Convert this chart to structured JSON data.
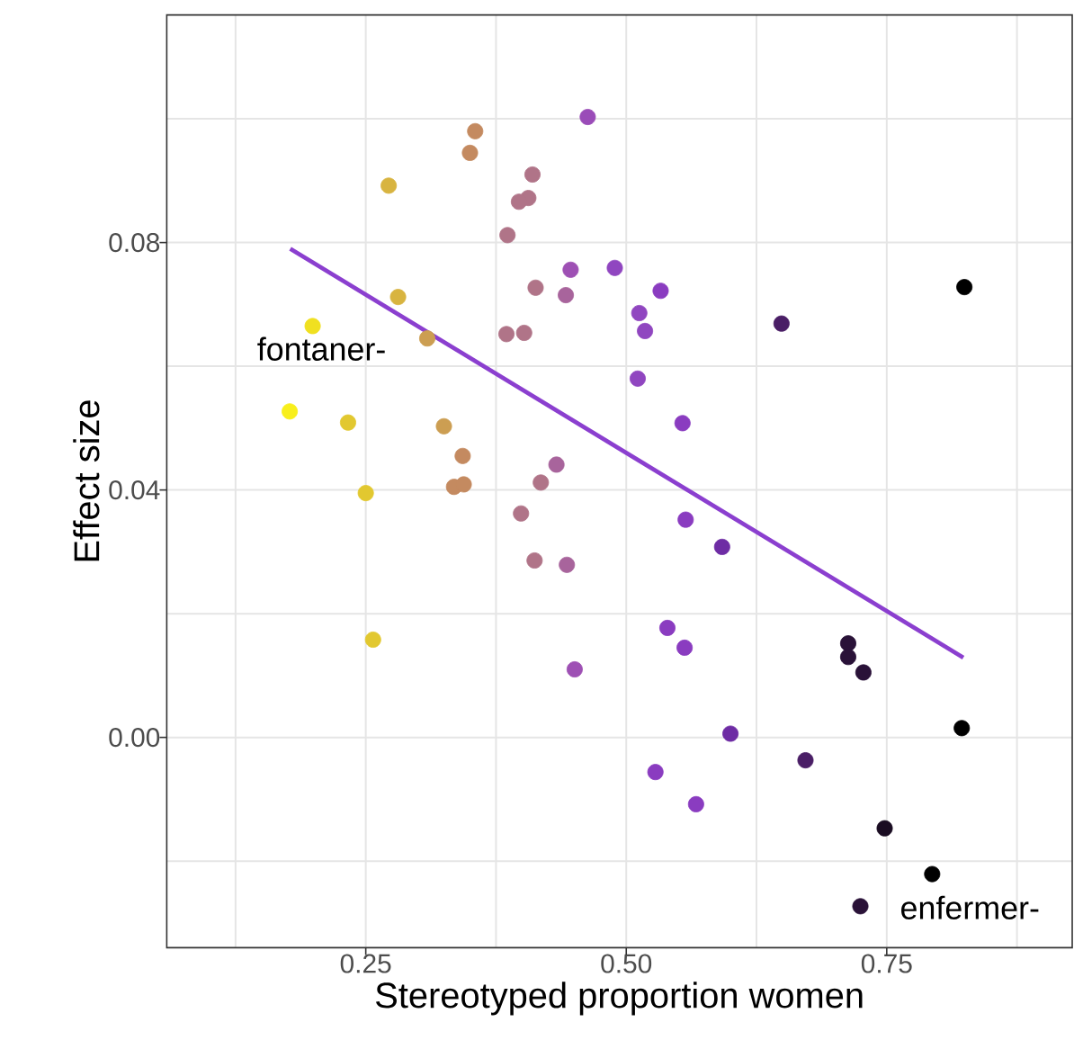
{
  "chart_data": {
    "type": "scatter",
    "xlabel": "Stereotyped proportion women",
    "ylabel": "Effect size",
    "xlim": [
      0.059,
      0.928
    ],
    "ylim": [
      -0.034,
      0.1168
    ],
    "xticks": [
      {
        "value": 0.125,
        "label": null
      },
      0.25,
      {
        "value": 0.375,
        "label": null
      },
      {
        "value": 0.5,
        "label": "0.50"
      },
      {
        "value": 0.625,
        "label": null
      },
      0.75,
      {
        "value": 0.875,
        "label": null
      }
    ],
    "yticks": [
      {
        "value": -0.02,
        "label": null
      },
      {
        "value": 0,
        "label": "0.00"
      },
      {
        "value": 0.02,
        "label": null
      },
      0.04,
      {
        "value": 0.06,
        "label": null
      },
      0.08,
      {
        "value": 0.1,
        "label": null
      }
    ],
    "grid": true,
    "series": [
      {
        "marker": "circle",
        "x": [
          0.463,
          0.355,
          0.35,
          0.41,
          0.406,
          0.397,
          0.272,
          0.386,
          0.4466,
          0.489,
          0.413,
          0.442,
          0.281,
          0.199,
          0.385,
          0.402,
          0.309,
          0.177,
          0.233,
          0.325,
          0.343,
          0.433,
          0.418,
          0.533,
          0.5125,
          0.518,
          0.649,
          0.8245,
          0.511,
          0.554,
          0.25,
          0.3347,
          0.344,
          0.399,
          0.412,
          0.443,
          0.257,
          0.4505,
          0.557,
          0.592,
          0.5395,
          0.556,
          0.713,
          0.713,
          0.7276,
          0.822,
          0.6,
          0.672,
          0.528,
          0.567,
          0.748,
          0.7936,
          0.7247
        ],
        "values": [
          0.1003,
          0.098,
          0.0945,
          0.091,
          0.0872,
          0.0866,
          0.0892,
          0.0812,
          0.0756,
          0.0759,
          0.0727,
          0.0715,
          0.0712,
          0.0665,
          0.0652,
          0.0654,
          0.0645,
          0.0527,
          0.0509,
          0.0503,
          0.0455,
          0.0441,
          0.0412,
          0.0722,
          0.0686,
          0.0657,
          0.0669,
          0.0728,
          0.058,
          0.0508,
          0.0395,
          0.0405,
          0.0409,
          0.0362,
          0.0286,
          0.0279,
          0.0158,
          0.011,
          0.0352,
          0.0308,
          0.0177,
          0.0145,
          0.0152,
          0.013,
          0.0105,
          0.0015,
          0.0006,
          -0.0037,
          -0.0056,
          -0.0108,
          -0.0147,
          -0.0221,
          -0.0273
        ],
        "colors": [
          "#9a4cb8",
          "#c48a60",
          "#c48a60",
          "#b07488",
          "#b07488",
          "#b07488",
          "#d8b440",
          "#b07488",
          "#9e50b4",
          "#9046c0",
          "#b07488",
          "#a8649c",
          "#d8b440",
          "#f0e020",
          "#b07488",
          "#b07488",
          "#cc9e52",
          "#f8ef1c",
          "#e2c830",
          "#cc9e52",
          "#c48a60",
          "#a8649c",
          "#b07488",
          "#8a3cc0",
          "#9046c0",
          "#9046c0",
          "#4a1e66",
          "#000000",
          "#9046c0",
          "#8a3cc0",
          "#e2c830",
          "#c48a60",
          "#c48a60",
          "#b07488",
          "#b07488",
          "#a8649c",
          "#e2c830",
          "#9e50b4",
          "#8a3cc0",
          "#6e2ca4",
          "#8a3cc0",
          "#8a3cc0",
          "#2a1238",
          "#2a1238",
          "#2a1238",
          "#000000",
          "#6e2ca4",
          "#4a1e66",
          "#8a3cc0",
          "#8a3cc0",
          "#1a0c22",
          "#000000",
          "#2a1238"
        ]
      },
      {
        "type": "line",
        "x": [
          0.1775,
          0.8235
        ],
        "values": [
          0.079,
          0.0129
        ],
        "color": "#8b3fcf"
      }
    ],
    "annotations": [
      "fontaner-",
      "enfermer-"
    ]
  }
}
